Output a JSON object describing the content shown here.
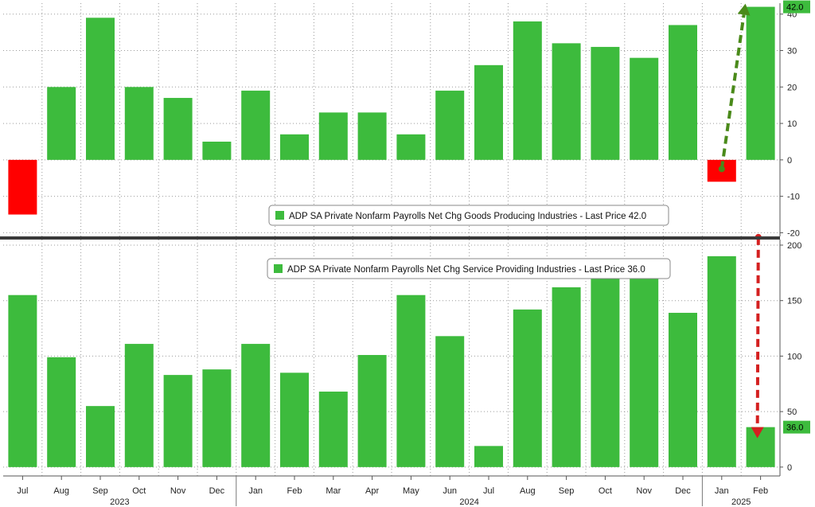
{
  "chart_data": [
    {
      "type": "bar",
      "title": "",
      "xlabel": "",
      "ylabel": "",
      "legend": "ADP SA Private Nonfarm Payrolls Net Chg Goods Producing Industries - Last Price 42.0",
      "legend_placement": "bottom-right",
      "last_price_label": "42.0",
      "categories": [
        "Jul",
        "Aug",
        "Sep",
        "Oct",
        "Nov",
        "Dec",
        "Jan",
        "Feb",
        "Mar",
        "Apr",
        "May",
        "Jun",
        "Jul",
        "Aug",
        "Sep",
        "Oct",
        "Nov",
        "Dec",
        "Jan",
        "Feb"
      ],
      "values": [
        -15,
        20,
        39,
        20,
        17,
        5,
        19,
        7,
        13,
        13,
        7,
        19,
        26,
        38,
        32,
        31,
        28,
        37,
        -6,
        42
      ],
      "yticks": [
        -20,
        -10,
        0,
        10,
        20,
        30,
        40
      ],
      "ylim": [
        -21,
        43
      ],
      "grid": true,
      "colors": {
        "positive": "#3dbb3d",
        "negative": "#ff0000",
        "arrow": "#4a8a1a"
      }
    },
    {
      "type": "bar",
      "title": "",
      "xlabel": "",
      "ylabel": "",
      "legend": "ADP SA Private Nonfarm Payrolls Net Chg Service Providing Industries - Last Price 36.0",
      "legend_placement": "top-right",
      "last_price_label": "36.0",
      "categories": [
        "Jul",
        "Aug",
        "Sep",
        "Oct",
        "Nov",
        "Dec",
        "Jan",
        "Feb",
        "Mar",
        "Apr",
        "May",
        "Jun",
        "Jul",
        "Aug",
        "Sep",
        "Oct",
        "Nov",
        "Dec",
        "Jan",
        "Feb"
      ],
      "values": [
        155,
        99,
        55,
        111,
        83,
        88,
        111,
        85,
        68,
        101,
        155,
        118,
        19,
        142,
        162,
        179,
        173,
        139,
        190,
        36
      ],
      "yticks": [
        0,
        50,
        100,
        150,
        200
      ],
      "ylim": [
        -8,
        205
      ],
      "grid": true,
      "colors": {
        "positive": "#3dbb3d",
        "arrow": "#d42020"
      }
    }
  ],
  "x_axis": {
    "months": [
      "Jul",
      "Aug",
      "Sep",
      "Oct",
      "Nov",
      "Dec",
      "Jan",
      "Feb",
      "Mar",
      "Apr",
      "May",
      "Jun",
      "Jul",
      "Aug",
      "Sep",
      "Oct",
      "Nov",
      "Dec",
      "Jan",
      "Feb"
    ],
    "years": [
      "2023",
      "2024",
      "2025"
    ]
  }
}
